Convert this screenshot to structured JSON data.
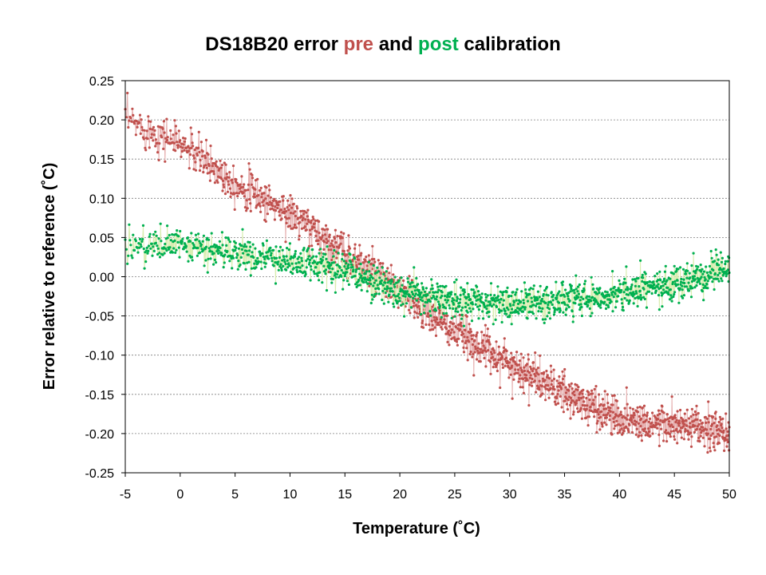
{
  "chart_data": {
    "type": "scatter",
    "title": {
      "part1": "DS18B20 error ",
      "pre": "pre",
      "part2": " and ",
      "post": "post",
      "part3": " calibration"
    },
    "xlabel": "Temperature (˚C)",
    "ylabel": "Error relative to reference (˚C)",
    "xlim": [
      -5,
      50
    ],
    "ylim": [
      -0.25,
      0.25
    ],
    "x_ticks": [
      "-5",
      "0",
      "5",
      "10",
      "15",
      "20",
      "25",
      "30",
      "35",
      "40",
      "45",
      "50"
    ],
    "y_ticks": [
      "0.25",
      "0.20",
      "0.15",
      "0.10",
      "0.05",
      "0.00",
      "-0.05",
      "-0.10",
      "-0.15",
      "-0.20",
      "-0.25"
    ],
    "grid": "horizontal dashed",
    "series": [
      {
        "name": "pre",
        "color": "#c0504d",
        "line_color": "#e6b0b0",
        "trend_x": [
          -5,
          0,
          5,
          10,
          15,
          20,
          25,
          30,
          35,
          40,
          45,
          50
        ],
        "trend_y": [
          0.2,
          0.17,
          0.12,
          0.08,
          0.03,
          -0.02,
          -0.07,
          -0.11,
          -0.15,
          -0.18,
          -0.19,
          -0.2
        ],
        "spread": 0.025
      },
      {
        "name": "post",
        "color": "#00b050",
        "line_color": "#d9edb0",
        "trend_x": [
          -5,
          0,
          5,
          10,
          15,
          20,
          25,
          30,
          35,
          40,
          45,
          50
        ],
        "trend_y": [
          0.04,
          0.04,
          0.03,
          0.02,
          0.01,
          -0.02,
          -0.03,
          -0.035,
          -0.03,
          -0.02,
          -0.01,
          0.01
        ],
        "spread": 0.022
      }
    ]
  }
}
